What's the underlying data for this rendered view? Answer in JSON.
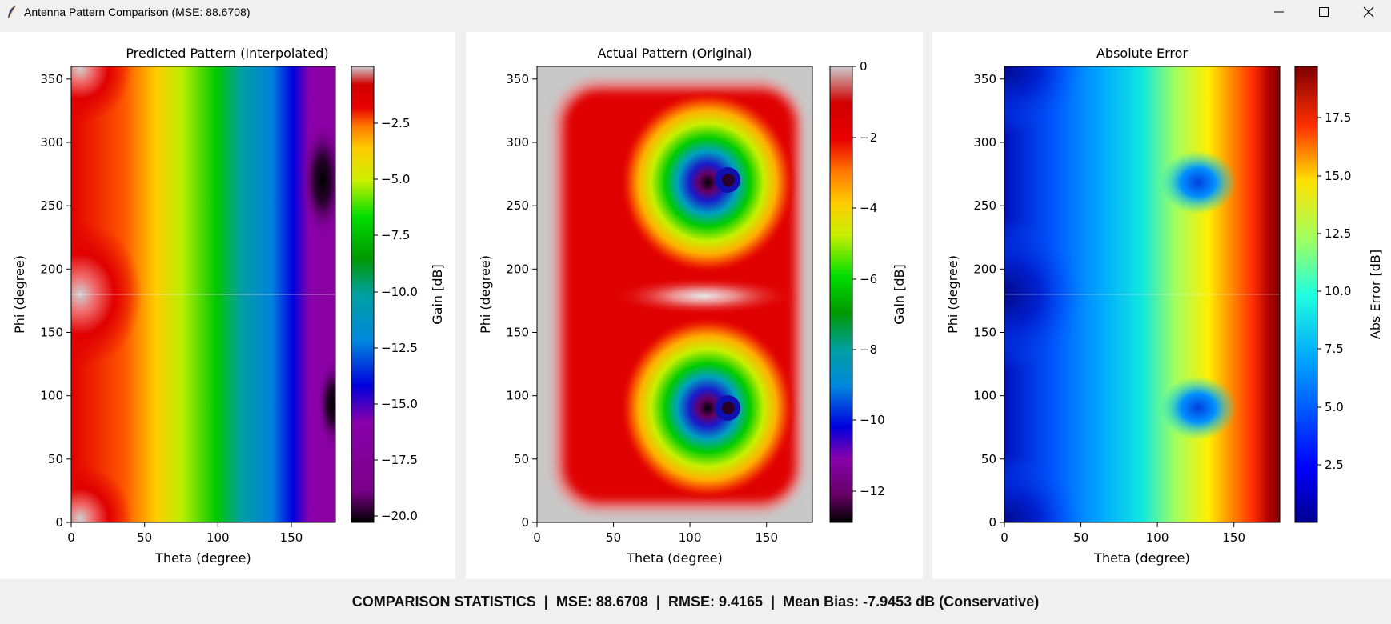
{
  "window": {
    "title": "Antenna Pattern Comparison (MSE: 88.6708)",
    "icon": "feather-icon",
    "controls": [
      "minimize-icon",
      "maximize-icon",
      "close-icon"
    ]
  },
  "chart_data": [
    {
      "type": "heatmap",
      "title": "Predicted Pattern (Interpolated)",
      "xlabel": "Theta (degree)",
      "ylabel": "Phi (degree)",
      "xlim": [
        0,
        180
      ],
      "ylim": [
        0,
        360
      ],
      "xticks": [
        "0",
        "50",
        "100",
        "150"
      ],
      "yticks": [
        "0",
        "50",
        "100",
        "150",
        "200",
        "250",
        "300",
        "350"
      ],
      "colorbar": {
        "label": "Gain [dB]",
        "range": [
          -20.5,
          -0.2
        ],
        "ticks": [
          "−20.0",
          "−17.5",
          "−15.0",
          "−12.5",
          "−10.0",
          "−7.5",
          "−5.0",
          "−2.5"
        ],
        "colormap": "nipy_spectral"
      }
    },
    {
      "type": "heatmap",
      "title": "Actual Pattern (Original)",
      "xlabel": "Theta (degree)",
      "ylabel": "Phi (degree)",
      "xlim": [
        0,
        180
      ],
      "ylim": [
        0,
        360
      ],
      "xticks": [
        "0",
        "50",
        "100",
        "150"
      ],
      "yticks": [
        "0",
        "50",
        "100",
        "150",
        "200",
        "250",
        "300",
        "350"
      ],
      "colorbar": {
        "label": "Gain [dB]",
        "range": [
          -12.9,
          0
        ],
        "ticks": [
          "−12",
          "−10",
          "−8",
          "−6",
          "−4",
          "−2",
          "0"
        ],
        "colormap": "nipy_spectral"
      }
    },
    {
      "type": "heatmap",
      "title": "Absolute Error",
      "xlabel": "Theta (degree)",
      "ylabel": "Phi (degree)",
      "xlim": [
        0,
        180
      ],
      "ylim": [
        0,
        360
      ],
      "xticks": [
        "0",
        "50",
        "100",
        "150"
      ],
      "yticks": [
        "0",
        "50",
        "100",
        "150",
        "200",
        "250",
        "300",
        "350"
      ],
      "colorbar": {
        "label": "Abs Error [dB]",
        "range": [
          0,
          19.7
        ],
        "ticks": [
          "2.5",
          "5.0",
          "7.5",
          "10.0",
          "12.5",
          "15.0",
          "17.5"
        ],
        "colormap": "jet"
      }
    }
  ],
  "status": {
    "heading": "COMPARISON STATISTICS",
    "mse": "MSE: 88.6708",
    "rmse": "RMSE: 9.4165",
    "bias": "Mean Bias: -7.9453 dB (Conservative)",
    "separator": "|"
  }
}
